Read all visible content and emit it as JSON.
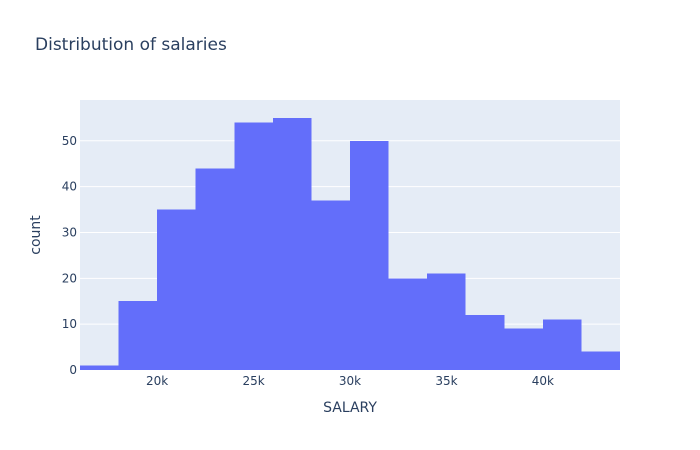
{
  "chart_data": {
    "type": "bar",
    "title": "Distribution of salaries",
    "xlabel": "SALARY",
    "ylabel": "count",
    "bins": [
      {
        "x0": 16000,
        "x1": 18000,
        "count": 1
      },
      {
        "x0": 18000,
        "x1": 20000,
        "count": 15
      },
      {
        "x0": 20000,
        "x1": 22000,
        "count": 35
      },
      {
        "x0": 22000,
        "x1": 24000,
        "count": 44
      },
      {
        "x0": 24000,
        "x1": 26000,
        "count": 54
      },
      {
        "x0": 26000,
        "x1": 28000,
        "count": 55
      },
      {
        "x0": 28000,
        "x1": 30000,
        "count": 37
      },
      {
        "x0": 30000,
        "x1": 32000,
        "count": 50
      },
      {
        "x0": 32000,
        "x1": 34000,
        "count": 20
      },
      {
        "x0": 34000,
        "x1": 36000,
        "count": 21
      },
      {
        "x0": 36000,
        "x1": 38000,
        "count": 12
      },
      {
        "x0": 38000,
        "x1": 40000,
        "count": 9
      },
      {
        "x0": 40000,
        "x1": 42000,
        "count": 11
      },
      {
        "x0": 42000,
        "x1": 44000,
        "count": 4
      }
    ],
    "xlim": [
      16000,
      44000
    ],
    "ylim": [
      0,
      58.9
    ],
    "x_ticks": [
      {
        "value": 20000,
        "label": "20k"
      },
      {
        "value": 25000,
        "label": "25k"
      },
      {
        "value": 30000,
        "label": "30k"
      },
      {
        "value": 35000,
        "label": "35k"
      },
      {
        "value": 40000,
        "label": "40k"
      }
    ],
    "y_ticks": [
      {
        "value": 0,
        "label": "0"
      },
      {
        "value": 10,
        "label": "10"
      },
      {
        "value": 20,
        "label": "20"
      },
      {
        "value": 30,
        "label": "30"
      },
      {
        "value": 40,
        "label": "40"
      },
      {
        "value": 50,
        "label": "50"
      }
    ],
    "grid": true,
    "colors": {
      "bar": "#636efa",
      "plot_background": "#e5ecf6",
      "gridline": "#ffffff",
      "text": "#2a3f5f"
    }
  }
}
